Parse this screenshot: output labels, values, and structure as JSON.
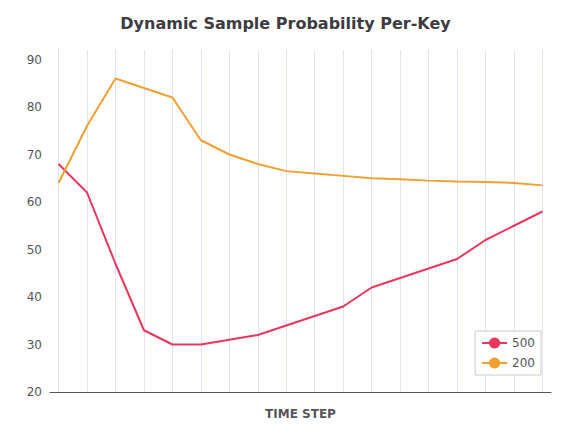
{
  "chart_data": {
    "type": "line",
    "title": "Dynamic Sample Probability Per-Key",
    "xlabel": "TIME STEP",
    "x": [
      0,
      1,
      2,
      3,
      4,
      5,
      6,
      7,
      8,
      9,
      10,
      11,
      12,
      13,
      14,
      15,
      16,
      17
    ],
    "series": [
      {
        "name": "500",
        "color": "#e8365d",
        "values": [
          68,
          62,
          47,
          33,
          30,
          30,
          31,
          32,
          34,
          36,
          38,
          42,
          44,
          46,
          48,
          52,
          55,
          58
        ]
      },
      {
        "name": "200",
        "color": "#f0a030",
        "values": [
          64,
          76,
          86,
          84,
          82,
          73,
          70,
          68,
          66.5,
          66,
          65.5,
          65,
          64.8,
          64.5,
          64.3,
          64.2,
          64.0,
          63.5
        ]
      }
    ],
    "xlim": [
      -0.3,
      17.3
    ],
    "xticks": [
      0,
      1,
      2,
      3,
      4,
      5,
      6,
      7,
      8,
      9,
      10,
      11,
      12,
      13,
      14,
      15,
      16,
      17
    ],
    "ylim": [
      20,
      92
    ],
    "yticks": [
      20,
      30,
      40,
      50,
      60,
      70,
      80,
      90
    ],
    "grid": "x",
    "legend": "lower right",
    "tick_labels": "y"
  }
}
